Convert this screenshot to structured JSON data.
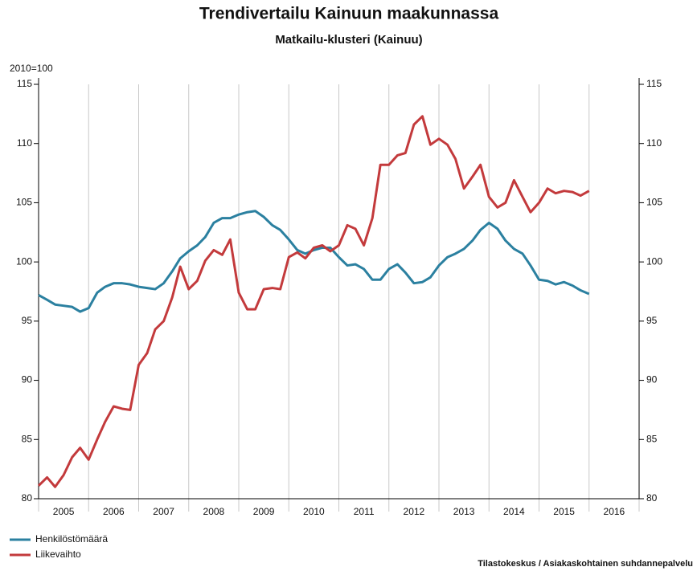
{
  "chart_data": {
    "type": "line",
    "title": "Trendivertailu Kainuun maakunnassa",
    "subtitle": "Matkailu-klusteri (Kainuu)",
    "y_label": "2010=100",
    "source": "Tilastokeskus / Asiakaskohtainen suhdannepalvelu",
    "x": [
      2005.0,
      2005.17,
      2005.33,
      2005.5,
      2005.67,
      2005.83,
      2006.0,
      2006.17,
      2006.33,
      2006.5,
      2006.67,
      2006.83,
      2007.0,
      2007.17,
      2007.33,
      2007.5,
      2007.67,
      2007.83,
      2008.0,
      2008.17,
      2008.33,
      2008.5,
      2008.67,
      2008.83,
      2009.0,
      2009.17,
      2009.33,
      2009.5,
      2009.67,
      2009.83,
      2010.0,
      2010.17,
      2010.33,
      2010.5,
      2010.67,
      2010.83,
      2011.0,
      2011.17,
      2011.33,
      2011.5,
      2011.67,
      2011.83,
      2012.0,
      2012.17,
      2012.33,
      2012.5,
      2012.67,
      2012.83,
      2013.0,
      2013.17,
      2013.33,
      2013.5,
      2013.67,
      2013.83,
      2014.0,
      2014.17,
      2014.33,
      2014.5,
      2014.67,
      2014.83,
      2015.0,
      2015.17,
      2015.33,
      2015.5,
      2015.67,
      2015.83,
      2016.0
    ],
    "series": [
      {
        "name": "Henkilöstömäärä",
        "color": "#2b80a0",
        "values": [
          97.2,
          96.8,
          96.4,
          96.3,
          96.2,
          95.8,
          96.1,
          97.4,
          97.9,
          98.2,
          98.2,
          98.1,
          97.9,
          97.8,
          97.7,
          98.2,
          99.2,
          100.3,
          100.9,
          101.4,
          102.1,
          103.3,
          103.7,
          103.7,
          104.0,
          104.2,
          104.3,
          103.8,
          103.1,
          102.7,
          101.9,
          101.0,
          100.7,
          101.0,
          101.2,
          101.2,
          100.4,
          99.7,
          99.8,
          99.4,
          98.5,
          98.5,
          99.4,
          99.8,
          99.1,
          98.2,
          98.3,
          98.7,
          99.7,
          100.4,
          100.7,
          101.1,
          101.8,
          102.7,
          103.3,
          102.8,
          101.8,
          101.1,
          100.7,
          99.7,
          98.5,
          98.4,
          98.1,
          98.3,
          98.0,
          97.6,
          97.3
        ]
      },
      {
        "name": "Liikevaihto",
        "color": "#c33a3c",
        "values": [
          81.1,
          81.8,
          81.0,
          82.0,
          83.5,
          84.3,
          83.3,
          85.0,
          86.5,
          87.8,
          87.6,
          87.5,
          91.3,
          92.3,
          94.3,
          95.0,
          97.0,
          99.6,
          97.7,
          98.4,
          100.1,
          101.0,
          100.6,
          101.9,
          97.4,
          96.0,
          96.0,
          97.7,
          97.8,
          97.7,
          100.4,
          100.8,
          100.3,
          101.2,
          101.4,
          100.9,
          101.4,
          103.1,
          102.8,
          101.4,
          103.7,
          108.2,
          108.2,
          109.0,
          109.2,
          111.6,
          112.3,
          109.9,
          110.4,
          109.9,
          108.7,
          106.2,
          107.2,
          108.2,
          105.5,
          104.6,
          105.0,
          106.9,
          105.5,
          104.2,
          105.0,
          106.2,
          105.8,
          106.0,
          105.9,
          105.6,
          106.0
        ]
      }
    ],
    "xlim": [
      2005,
      2017
    ],
    "xgrid": [
      2005,
      2006,
      2007,
      2008,
      2009,
      2010,
      2011,
      2012,
      2013,
      2014,
      2015,
      2016,
      2017
    ],
    "xticks": [
      {
        "value": 2005.5,
        "label": "2005"
      },
      {
        "value": 2006.5,
        "label": "2006"
      },
      {
        "value": 2007.5,
        "label": "2007"
      },
      {
        "value": 2008.5,
        "label": "2008"
      },
      {
        "value": 2009.5,
        "label": "2009"
      },
      {
        "value": 2010.5,
        "label": "2010"
      },
      {
        "value": 2011.5,
        "label": "2011"
      },
      {
        "value": 2012.5,
        "label": "2012"
      },
      {
        "value": 2013.5,
        "label": "2013"
      },
      {
        "value": 2014.5,
        "label": "2014"
      },
      {
        "value": 2015.5,
        "label": "2015"
      },
      {
        "value": 2016.5,
        "label": "2016"
      }
    ],
    "ylim": [
      80,
      115
    ],
    "yticks": [
      80,
      85,
      90,
      95,
      100,
      105,
      110,
      115
    ],
    "y2lim": [
      80,
      115
    ],
    "y2ticks": [
      80,
      85,
      90,
      95,
      100,
      105,
      110,
      115
    ],
    "grid": true,
    "legend": "bottom-left"
  }
}
